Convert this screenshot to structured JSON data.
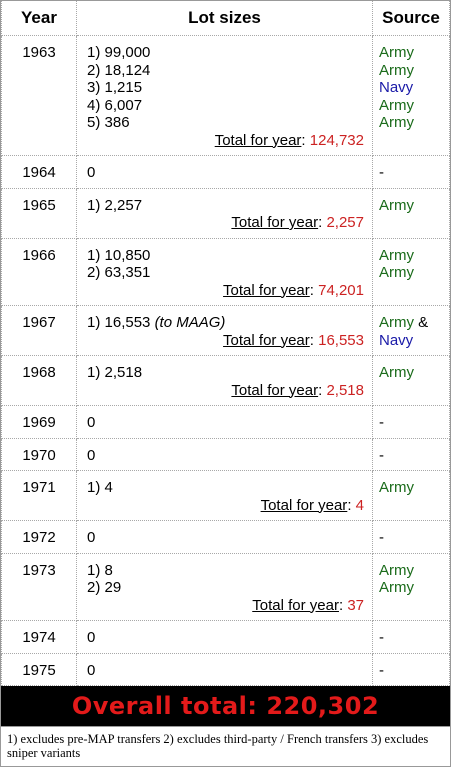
{
  "headers": {
    "year": "Year",
    "lots": "Lot sizes",
    "source": "Source"
  },
  "rows": [
    {
      "year": "1963",
      "lots": [
        "1) 99,000",
        "2) 18,124",
        "3) 1,215",
        "4) 6,007",
        "5) 386"
      ],
      "total_label": "Total for year",
      "total_value": "124,732",
      "sources": [
        {
          "text": "Army",
          "kind": "army"
        },
        {
          "text": "Army",
          "kind": "army"
        },
        {
          "text": "Navy",
          "kind": "navy"
        },
        {
          "text": "Army",
          "kind": "army"
        },
        {
          "text": "Army",
          "kind": "army"
        }
      ]
    },
    {
      "year": "1964",
      "lots": [
        "0"
      ],
      "sources": [
        {
          "text": "-",
          "kind": "none"
        }
      ]
    },
    {
      "year": "1965",
      "lots": [
        "1) 2,257"
      ],
      "total_label": "Total for year",
      "total_value": "2,257",
      "sources": [
        {
          "text": "Army",
          "kind": "army"
        }
      ]
    },
    {
      "year": "1966",
      "lots": [
        "1) 10,850",
        "2) 63,351"
      ],
      "total_label": "Total for year",
      "total_value": "74,201",
      "sources": [
        {
          "text": "Army",
          "kind": "army"
        },
        {
          "text": "Army",
          "kind": "army"
        }
      ]
    },
    {
      "year": "1967",
      "lots": [
        "1) 16,553"
      ],
      "lot_note": "(to MAAG)",
      "total_label": "Total for year",
      "total_value": "16,553",
      "sources": [
        {
          "text": "Army",
          "kind": "army",
          "suffix": " &"
        },
        {
          "text": "Navy",
          "kind": "navy"
        }
      ]
    },
    {
      "year": "1968",
      "lots": [
        "1) 2,518"
      ],
      "total_label": "Total for year",
      "total_value": "2,518",
      "sources": [
        {
          "text": "Army",
          "kind": "army"
        }
      ]
    },
    {
      "year": "1969",
      "lots": [
        "0"
      ],
      "sources": [
        {
          "text": "-",
          "kind": "none"
        }
      ]
    },
    {
      "year": "1970",
      "lots": [
        "0"
      ],
      "sources": [
        {
          "text": "-",
          "kind": "none"
        }
      ]
    },
    {
      "year": "1971",
      "lots": [
        "1) 4"
      ],
      "total_label": "Total for year",
      "total_value": "4",
      "sources": [
        {
          "text": "Army",
          "kind": "army"
        }
      ]
    },
    {
      "year": "1972",
      "lots": [
        "0"
      ],
      "sources": [
        {
          "text": "-",
          "kind": "none"
        }
      ]
    },
    {
      "year": "1973",
      "lots": [
        "1) 8",
        "2) 29"
      ],
      "total_label": "Total for year",
      "total_value": "37",
      "sources": [
        {
          "text": "Army",
          "kind": "army"
        },
        {
          "text": "Army",
          "kind": "army"
        }
      ]
    },
    {
      "year": "1974",
      "lots": [
        "0"
      ],
      "sources": [
        {
          "text": "-",
          "kind": "none"
        }
      ]
    },
    {
      "year": "1975",
      "lots": [
        "0"
      ],
      "sources": [
        {
          "text": "-",
          "kind": "none"
        }
      ]
    }
  ],
  "overall": {
    "label": "Overall total:",
    "value": "220,302"
  },
  "footnote": "1) excludes pre-MAP transfers 2) excludes third-party / French transfers 3) excludes sniper variants"
}
